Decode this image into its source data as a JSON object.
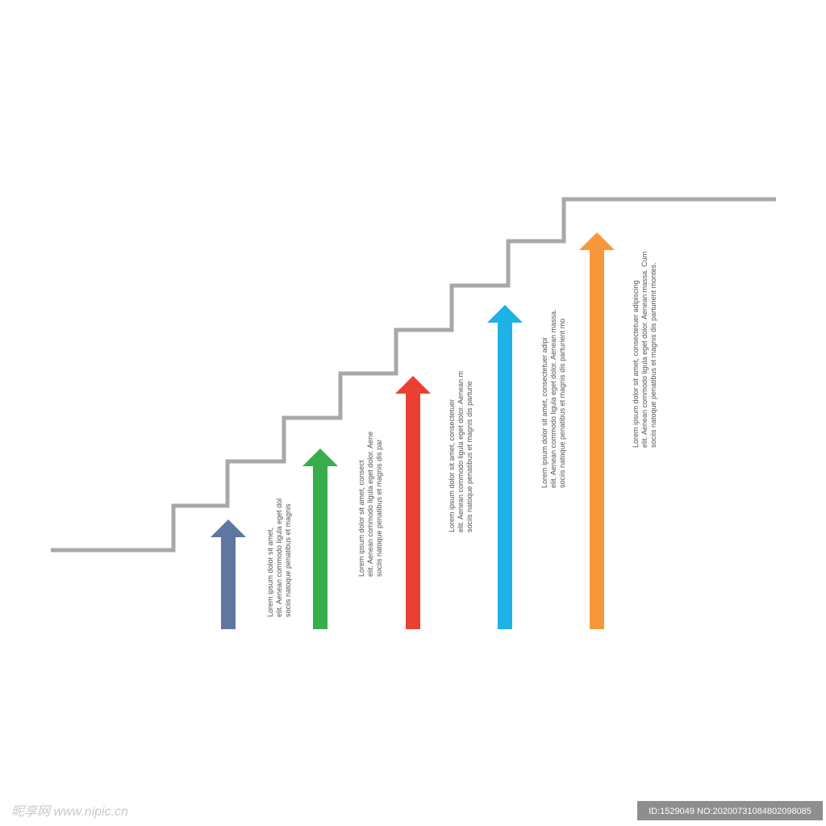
{
  "steps": [
    {
      "lines": [
        "Lorem ipsum dolor sit amet,",
        "elit. Aenean commodo ligula eget dol",
        "sociis natoque penatibus et magnis"
      ]
    },
    {
      "lines": [
        "Lorem ipsum dolor sit amet, consect",
        "elit. Aenean commodo ligula eget dolor. Aene",
        "sociis natoque penatibus et magnis dis par"
      ]
    },
    {
      "lines": [
        "Lorem ipsum dolor sit amet, consectetuer",
        "elit. Aenean commodo ligula eget dolor. Aenean m",
        "sociis natoque penatibus et magnis dis parturie"
      ]
    },
    {
      "lines": [
        "Lorem ipsum dolor sit amet, consectetuer adipi",
        "elit. Aenean commodo ligula eget dolor. Aenean massa.",
        "sociis natoque penatibus et magnis dis parturient mo"
      ]
    },
    {
      "lines": [
        "Lorem ipsum dolor sit amet, consectetuer adipiscing",
        "elit. Aenean commodo ligula eget dolor. Aenean massa. Cum",
        "sociis natoque penatibus et magnis dis parturient montes."
      ]
    }
  ],
  "watermark": {
    "site": "昵享网 www.nipic.cn",
    "id": "ID:1529049 NO:20200731084802098085"
  }
}
